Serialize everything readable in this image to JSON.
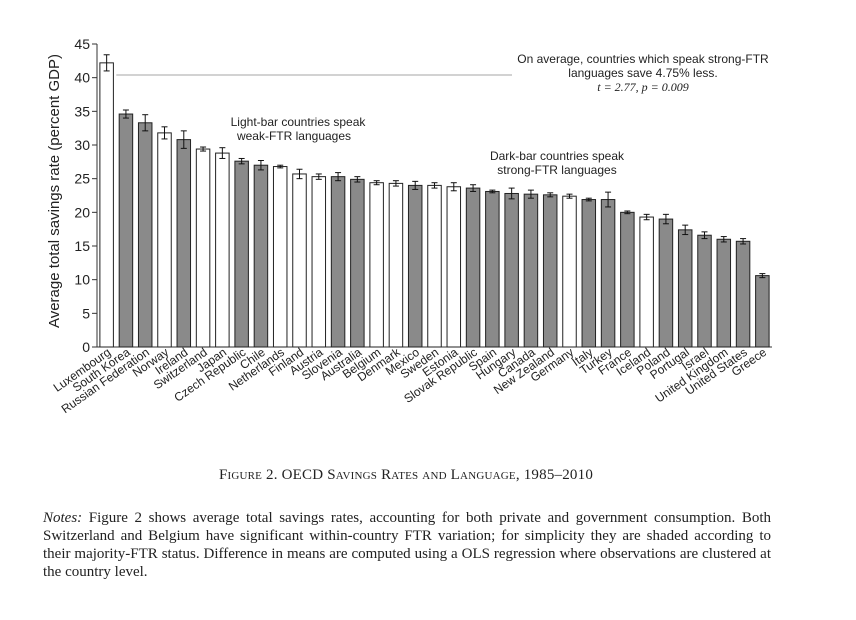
{
  "chart_data": {
    "type": "bar",
    "ylabel": "Average total savings rate (percent GDP)",
    "ylim": [
      0,
      45
    ],
    "yticks": [
      0,
      5,
      10,
      15,
      20,
      25,
      30,
      35,
      40,
      45
    ],
    "grid": false,
    "bar_colors": {
      "light": "#ffffff",
      "dark": "#8a8a8a"
    },
    "categories": [
      "Luxembourg",
      "South Korea",
      "Russian Federation",
      "Norway",
      "Ireland",
      "Switzerland",
      "Japan",
      "Czech Republic",
      "Chile",
      "Netherlands",
      "Finland",
      "Austria",
      "Slovenia",
      "Australia",
      "Belgium",
      "Denmark",
      "Mexico",
      "Sweden",
      "Estonia",
      "Slovak Republic",
      "Spain",
      "Hungary",
      "Canada",
      "New Zealand",
      "Germany",
      "Italy",
      "Turkey",
      "France",
      "Iceland",
      "Poland",
      "Portugal",
      "Israel",
      "United Kingdom",
      "United States",
      "Greece"
    ],
    "values": [
      42.2,
      34.6,
      33.3,
      31.8,
      30.8,
      29.4,
      28.8,
      27.6,
      27.0,
      26.8,
      25.7,
      25.3,
      25.3,
      24.9,
      24.4,
      24.3,
      24.0,
      24.0,
      23.8,
      23.6,
      23.1,
      22.8,
      22.7,
      22.6,
      22.4,
      21.9,
      21.9,
      20.0,
      19.3,
      19.0,
      17.4,
      16.6,
      16.0,
      15.7,
      10.6
    ],
    "errors": [
      1.2,
      0.6,
      1.2,
      0.9,
      1.3,
      0.3,
      0.8,
      0.4,
      0.7,
      0.2,
      0.7,
      0.4,
      0.6,
      0.4,
      0.3,
      0.4,
      0.6,
      0.4,
      0.6,
      0.5,
      0.2,
      0.8,
      0.6,
      0.3,
      0.3,
      0.2,
      1.1,
      0.2,
      0.4,
      0.7,
      0.7,
      0.5,
      0.4,
      0.4,
      0.3
    ],
    "shading": [
      "light",
      "dark",
      "dark",
      "light",
      "dark",
      "light",
      "light",
      "dark",
      "dark",
      "light",
      "light",
      "light",
      "dark",
      "dark",
      "light",
      "light",
      "dark",
      "light",
      "light",
      "dark",
      "dark",
      "dark",
      "dark",
      "dark",
      "light",
      "dark",
      "dark",
      "dark",
      "light",
      "dark",
      "dark",
      "dark",
      "dark",
      "dark",
      "dark"
    ],
    "annotations": {
      "avg_line1": "On average, countries which speak strong-FTR",
      "avg_line2": "languages save 4.75% less.",
      "avg_line3": "t = 2.77, p = 0.009",
      "light_line1": "Light-bar countries speak",
      "light_line2": "weak-FTR languages",
      "dark_line1": "Dark-bar countries speak",
      "dark_line2": "strong-FTR languages"
    }
  },
  "caption": "Figure 2. OECD Savings Rates and Language, 1985–2010",
  "notes": {
    "label": "Notes:",
    "text": " Figure 2 shows average total savings rates, accounting for both private and government consumption. Both Switzerland and Belgium have significant within-country FTR variation; for simplicity they are shaded according to their majority-FTR status. Difference in means are computed using a OLS regression where observations are clustered at the country level."
  }
}
